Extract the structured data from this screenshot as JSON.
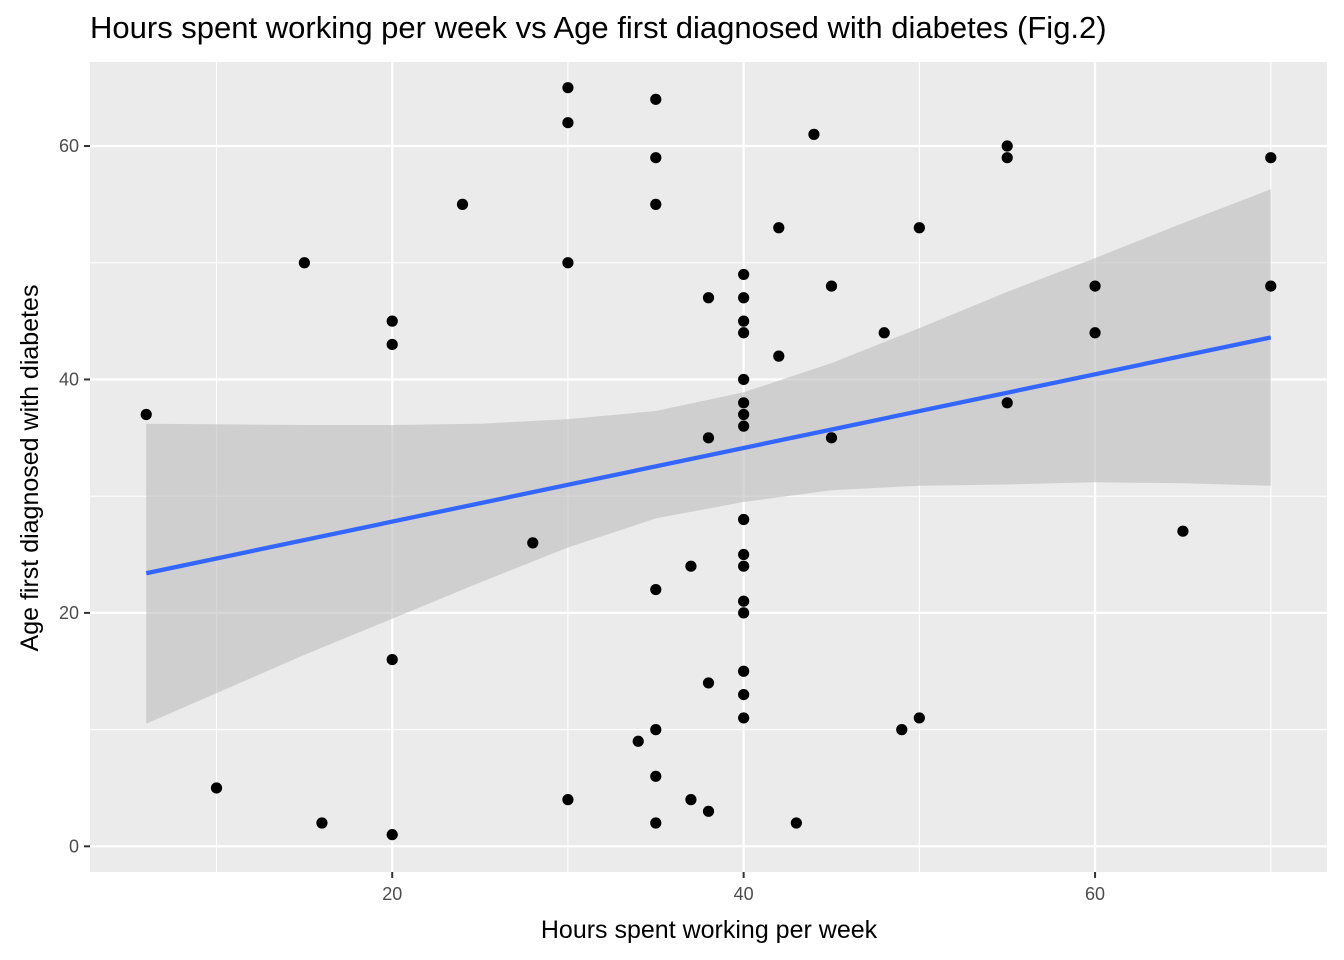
{
  "chart_data": {
    "type": "scatter",
    "title": "Hours spent working per week vs Age first diagnosed with diabetes (Fig.2)",
    "xlabel": "Hours spent working per week",
    "ylabel": "Age first diagnosed with diabetes",
    "xlim": [
      2.8,
      73.2
    ],
    "ylim": [
      -2.2,
      67.2
    ],
    "x_ticks": [
      20,
      40,
      60
    ],
    "y_ticks": [
      0,
      20,
      40,
      60
    ],
    "grid": true,
    "points": [
      {
        "x": 6,
        "y": 37
      },
      {
        "x": 10,
        "y": 5
      },
      {
        "x": 15,
        "y": 50
      },
      {
        "x": 16,
        "y": 2
      },
      {
        "x": 20,
        "y": 45
      },
      {
        "x": 20,
        "y": 43
      },
      {
        "x": 20,
        "y": 16
      },
      {
        "x": 20,
        "y": 1
      },
      {
        "x": 24,
        "y": 55
      },
      {
        "x": 28,
        "y": 26
      },
      {
        "x": 30,
        "y": 65
      },
      {
        "x": 30,
        "y": 62
      },
      {
        "x": 30,
        "y": 50
      },
      {
        "x": 30,
        "y": 4
      },
      {
        "x": 34,
        "y": 9
      },
      {
        "x": 35,
        "y": 64
      },
      {
        "x": 35,
        "y": 59
      },
      {
        "x": 35,
        "y": 55
      },
      {
        "x": 35,
        "y": 22
      },
      {
        "x": 35,
        "y": 10
      },
      {
        "x": 35,
        "y": 6
      },
      {
        "x": 35,
        "y": 2
      },
      {
        "x": 37,
        "y": 24
      },
      {
        "x": 37,
        "y": 4
      },
      {
        "x": 38,
        "y": 47
      },
      {
        "x": 38,
        "y": 35
      },
      {
        "x": 38,
        "y": 14
      },
      {
        "x": 38,
        "y": 3
      },
      {
        "x": 40,
        "y": 49
      },
      {
        "x": 40,
        "y": 47
      },
      {
        "x": 40,
        "y": 45
      },
      {
        "x": 40,
        "y": 44
      },
      {
        "x": 40,
        "y": 40
      },
      {
        "x": 40,
        "y": 38
      },
      {
        "x": 40,
        "y": 37
      },
      {
        "x": 40,
        "y": 36
      },
      {
        "x": 40,
        "y": 28
      },
      {
        "x": 40,
        "y": 25
      },
      {
        "x": 40,
        "y": 24
      },
      {
        "x": 40,
        "y": 21
      },
      {
        "x": 40,
        "y": 20
      },
      {
        "x": 40,
        "y": 15
      },
      {
        "x": 40,
        "y": 13
      },
      {
        "x": 40,
        "y": 11
      },
      {
        "x": 42,
        "y": 53
      },
      {
        "x": 42,
        "y": 42
      },
      {
        "x": 43,
        "y": 2
      },
      {
        "x": 44,
        "y": 61
      },
      {
        "x": 45,
        "y": 48
      },
      {
        "x": 45,
        "y": 35
      },
      {
        "x": 48,
        "y": 44
      },
      {
        "x": 49,
        "y": 10
      },
      {
        "x": 50,
        "y": 53
      },
      {
        "x": 50,
        "y": 11
      },
      {
        "x": 55,
        "y": 60
      },
      {
        "x": 55,
        "y": 59
      },
      {
        "x": 55,
        "y": 38
      },
      {
        "x": 60,
        "y": 48
      },
      {
        "x": 60,
        "y": 44
      },
      {
        "x": 65,
        "y": 27
      },
      {
        "x": 70,
        "y": 59
      },
      {
        "x": 70,
        "y": 48
      }
    ],
    "fit_line": {
      "x": [
        6,
        70
      ],
      "y": [
        23.4,
        43.6
      ]
    },
    "confidence_band": {
      "x": [
        6,
        15,
        20,
        25,
        30,
        35,
        40,
        45,
        50,
        55,
        60,
        65,
        70
      ],
      "upper": [
        36.2,
        36.1,
        36.1,
        36.2,
        36.6,
        37.3,
        38.9,
        41.4,
        44.4,
        47.5,
        50.4,
        53.4,
        56.3
      ],
      "lower": [
        10.5,
        16.4,
        19.5,
        22.6,
        25.6,
        28.1,
        29.5,
        30.5,
        30.9,
        31.0,
        31.2,
        31.1,
        30.9
      ]
    },
    "colors": {
      "panel": "#ebebeb",
      "grid_major": "#ffffff",
      "band": "#bebebe",
      "line": "#3366ff",
      "point": "#000000"
    }
  }
}
